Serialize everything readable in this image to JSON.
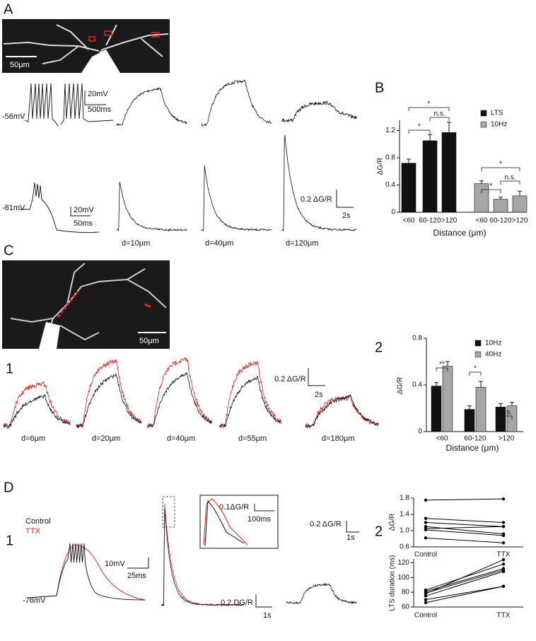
{
  "panel_labels": {
    "a": "A",
    "b": "B",
    "c": "C",
    "c1": "1",
    "c2": "2",
    "d": "D",
    "d1": "1",
    "d2": "2"
  },
  "panel_a": {
    "image_scale": "50μm",
    "vm1": "-56mV",
    "scale_v1": "20mV",
    "scale_t1": "500ms",
    "vm2": "-81mV",
    "scale_v2": "20mV",
    "scale_t2": "50ms",
    "scale_dgr": "0.2 ΔG/R",
    "scale_t3": "2s",
    "distances": [
      "d=10μm",
      "d=40μm",
      "d=120μm"
    ]
  },
  "panel_c": {
    "image_scale": "50μm",
    "scale_dgr": "0.2 ΔG/R",
    "scale_t": "2s",
    "distances": [
      "d=6μm",
      "d=20μm",
      "d=40μm",
      "d=55μm",
      "d=180μm"
    ]
  },
  "panel_d": {
    "legend": [
      "Control",
      "TTX"
    ],
    "vm": "-76mV",
    "scale_v": "10mV",
    "scale_t1": "25ms",
    "inset_dgr": "0.1ΔG/R",
    "inset_t": "100ms",
    "scale_dgr2": "0.2 DG/R",
    "scale_t2": "1s",
    "scale_dgr3": "0.2 ΔG/R",
    "scale_t3": "1s"
  },
  "chart_data": [
    {
      "type": "bar",
      "x_label": "Distance (μm)",
      "y_label": "ΔG/R",
      "categories": [
        "<60",
        "60-120",
        ">120",
        "<60",
        "60-120",
        ">120"
      ],
      "series": [
        {
          "name": "LTS",
          "color": "#111111",
          "values": [
            0.72,
            1.05,
            1.17,
            null,
            null,
            null
          ],
          "errors": [
            0.06,
            0.09,
            0.15,
            null,
            null,
            null
          ]
        },
        {
          "name": "10Hz",
          "color": "#a6a6a6",
          "values": [
            null,
            null,
            null,
            0.42,
            0.19,
            0.24
          ],
          "errors": [
            null,
            null,
            null,
            0.04,
            0.03,
            0.07
          ]
        }
      ],
      "ylim": [
        0,
        1.35
      ],
      "yticks": [
        0,
        0.4,
        0.8,
        1.2
      ],
      "annotations": [
        "*",
        "*",
        "n.s.",
        "*",
        "*",
        "n.s."
      ]
    },
    {
      "type": "bar",
      "x_label": "Distance (μm)",
      "y_label": "ΔG/R",
      "categories": [
        "<60",
        "60-120",
        ">120"
      ],
      "series": [
        {
          "name": "10Hz",
          "color": "#111111",
          "values": [
            0.39,
            0.19,
            0.21
          ],
          "errors": [
            0.03,
            0.03,
            0.03
          ]
        },
        {
          "name": "40Hz",
          "color": "#a6a6a6",
          "values": [
            0.56,
            0.38,
            0.22
          ],
          "errors": [
            0.04,
            0.05,
            0.03
          ]
        }
      ],
      "ylim": [
        0,
        0.8
      ],
      "yticks": [
        0,
        0.4,
        0.8
      ],
      "annotations": [
        "**",
        "*",
        "n.s."
      ]
    },
    {
      "type": "line",
      "y_label": "ΔG/R",
      "categories": [
        "Control",
        "TTX"
      ],
      "series": [
        {
          "color": "#000000",
          "values": [
            1.75,
            1.78
          ]
        },
        {
          "color": "#000000",
          "values": [
            1.3,
            1.2
          ]
        },
        {
          "color": "#000000",
          "values": [
            1.2,
            1.1
          ]
        },
        {
          "color": "#000000",
          "values": [
            1.1,
            0.92
          ]
        },
        {
          "color": "#000000",
          "values": [
            1.05,
            1.1
          ]
        },
        {
          "color": "#000000",
          "values": [
            1.02,
            0.88
          ]
        },
        {
          "color": "#000000",
          "values": [
            0.82,
            0.7
          ]
        }
      ],
      "ylim": [
        0.6,
        1.8
      ],
      "yticks": [
        0.6,
        {
          "value": 1,
          "label": "1.0"
        },
        1.4,
        1.8
      ]
    },
    {
      "type": "line",
      "y_label": "LTS duration (ms)",
      "categories": [
        "Control",
        "TTX"
      ],
      "series": [
        {
          "color": "#000000",
          "values": [
            83,
            118
          ]
        },
        {
          "color": "#000000",
          "values": [
            81,
            112
          ]
        },
        {
          "color": "#000000",
          "values": [
            79,
            110
          ]
        },
        {
          "color": "#000000",
          "values": [
            75,
            108
          ]
        },
        {
          "color": "#000000",
          "values": [
            70,
            88
          ]
        },
        {
          "color": "#000000",
          "values": [
            66,
            88
          ]
        },
        {
          "color": "#000000",
          "values": [
            78,
            124
          ]
        }
      ],
      "ylim": [
        60,
        125
      ],
      "yticks": [
        60,
        80,
        100,
        120
      ]
    }
  ]
}
